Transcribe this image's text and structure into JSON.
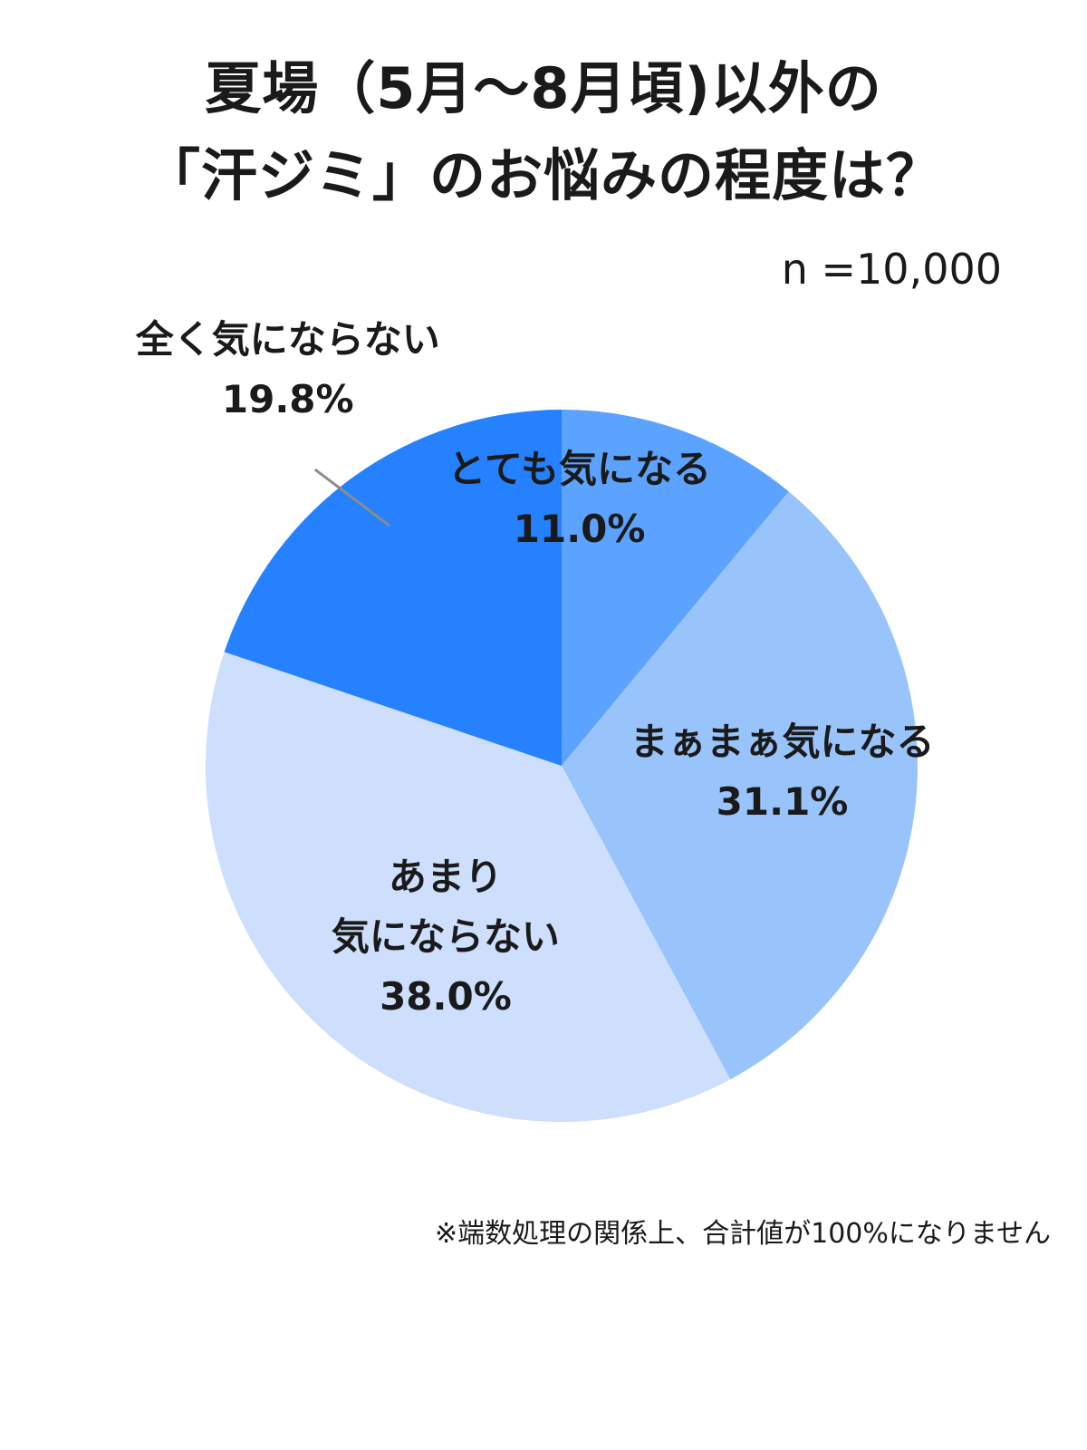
{
  "title": {
    "line1": "夏場（5月～8月頃)以外の",
    "line2": "「汗ジミ」のお悩みの程度は？"
  },
  "sample_size": "n =10,000",
  "footnote": "※端数処理の関係上、合計値が100%になりません",
  "chart_data": {
    "type": "pie",
    "title": "夏場（5月～8月頃)以外の「汗ジミ」のお悩みの程度は？",
    "slices": [
      {
        "label": "とても気になる",
        "value": 11.0,
        "value_label": "11.0%",
        "color": "#5ca3ff"
      },
      {
        "label": "まぁまぁ気になる",
        "value": 31.1,
        "value_label": "31.1%",
        "color": "#99c4fb"
      },
      {
        "label": "あまり気にならない",
        "label_lines": [
          "あまり",
          "気にならない"
        ],
        "value": 38.0,
        "value_label": "38.0%",
        "color": "#cddffc"
      },
      {
        "label": "全く気にならない",
        "value": 19.8,
        "value_label": "19.8%",
        "color": "#2581fe"
      }
    ],
    "start_direction": "12 o'clock",
    "direction": "clockwise",
    "legend": "none"
  }
}
